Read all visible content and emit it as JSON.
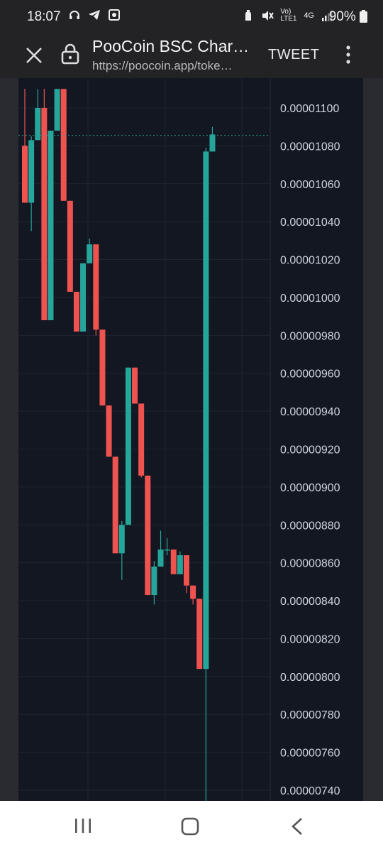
{
  "status_bar": {
    "time": "18:07",
    "network": "Vo) LTE1",
    "signal_type": "4G",
    "battery": "90%"
  },
  "browser": {
    "title": "PooCoin BSC Char…",
    "url": "https://poocoin.app/toke…",
    "action_label": "TWEET"
  },
  "chart_data": {
    "type": "candlestick",
    "y_axis_labels": [
      "0.00001100",
      "0.00001080",
      "0.00001060",
      "0.00001040",
      "0.00001020",
      "0.00001000",
      "0.00000980",
      "0.00000960",
      "0.00000940",
      "0.00000920",
      "0.00000900",
      "0.00000880",
      "0.00000860",
      "0.00000840",
      "0.00000820",
      "0.00000800",
      "0.00000780",
      "0.00000760",
      "0.00000740"
    ],
    "ylim": [
      7.3e-06,
      1.11e-05
    ],
    "current_price": 1.0855e-05,
    "up_color": "#26a69a",
    "down_color": "#ef5350",
    "candles": [
      {
        "o": 1.08e-05,
        "h": 1.11e-05,
        "l": 1.05e-05,
        "c": 1.05e-05
      },
      {
        "o": 1.05e-05,
        "h": 1.085e-05,
        "l": 1.035e-05,
        "c": 1.083e-05
      },
      {
        "o": 1.083e-05,
        "h": 1.11e-05,
        "l": 1.083e-05,
        "c": 1.1e-05
      },
      {
        "o": 1.1e-05,
        "h": 1.11e-05,
        "l": 9.88e-06,
        "c": 9.88e-06
      },
      {
        "o": 9.88e-06,
        "h": 1.088e-05,
        "l": 9.88e-06,
        "c": 1.088e-05
      },
      {
        "o": 1.088e-05,
        "h": 1.11e-05,
        "l": 1.088e-05,
        "c": 1.11e-05
      },
      {
        "o": 1.11e-05,
        "h": 1.11e-05,
        "l": 1.051e-05,
        "c": 1.051e-05
      },
      {
        "o": 1.051e-05,
        "h": 1.051e-05,
        "l": 1.003e-05,
        "c": 1.003e-05
      },
      {
        "o": 1.003e-05,
        "h": 1.003e-05,
        "l": 9.82e-06,
        "c": 9.82e-06
      },
      {
        "o": 9.82e-06,
        "h": 1.018e-05,
        "l": 9.82e-06,
        "c": 1.018e-05
      },
      {
        "o": 1.018e-05,
        "h": 1.031e-05,
        "l": 1.018e-05,
        "c": 1.028e-05
      },
      {
        "o": 1.028e-05,
        "h": 1.028e-05,
        "l": 9.8e-06,
        "c": 9.83e-06
      },
      {
        "o": 9.83e-06,
        "h": 9.83e-06,
        "l": 9.43e-06,
        "c": 9.43e-06
      },
      {
        "o": 9.43e-06,
        "h": 9.43e-06,
        "l": 9.16e-06,
        "c": 9.16e-06
      },
      {
        "o": 9.16e-06,
        "h": 9.16e-06,
        "l": 8.65e-06,
        "c": 8.65e-06
      },
      {
        "o": 8.65e-06,
        "h": 8.82e-06,
        "l": 8.51e-06,
        "c": 8.8e-06
      },
      {
        "o": 8.8e-06,
        "h": 9.63e-06,
        "l": 8.8e-06,
        "c": 9.63e-06
      },
      {
        "o": 9.63e-06,
        "h": 9.63e-06,
        "l": 9.44e-06,
        "c": 9.44e-06
      },
      {
        "o": 9.44e-06,
        "h": 9.44e-06,
        "l": 9.05e-06,
        "c": 9.06e-06
      },
      {
        "o": 9.06e-06,
        "h": 9.06e-06,
        "l": 8.43e-06,
        "c": 8.43e-06
      },
      {
        "o": 8.43e-06,
        "h": 8.61e-06,
        "l": 8.38e-06,
        "c": 8.58e-06
      },
      {
        "o": 8.58e-06,
        "h": 8.77e-06,
        "l": 8.58e-06,
        "c": 8.67e-06
      },
      {
        "o": 8.67e-06,
        "h": 8.73e-06,
        "l": 8.64e-06,
        "c": 8.67e-06
      },
      {
        "o": 8.67e-06,
        "h": 8.67e-06,
        "l": 8.54e-06,
        "c": 8.54e-06
      },
      {
        "o": 8.54e-06,
        "h": 8.66e-06,
        "l": 8.54e-06,
        "c": 8.64e-06
      },
      {
        "o": 8.64e-06,
        "h": 8.64e-06,
        "l": 8.44e-06,
        "c": 8.48e-06
      },
      {
        "o": 8.48e-06,
        "h": 8.48e-06,
        "l": 8.38e-06,
        "c": 8.41e-06
      },
      {
        "o": 8.41e-06,
        "h": 8.41e-06,
        "l": 8.04e-06,
        "c": 8.04e-06
      },
      {
        "o": 8.04e-06,
        "h": 1.079e-05,
        "l": 7.3e-06,
        "c": 1.077e-05
      },
      {
        "o": 1.077e-05,
        "h": 1.09e-05,
        "l": 1.077e-05,
        "c": 1.086e-05
      }
    ]
  }
}
